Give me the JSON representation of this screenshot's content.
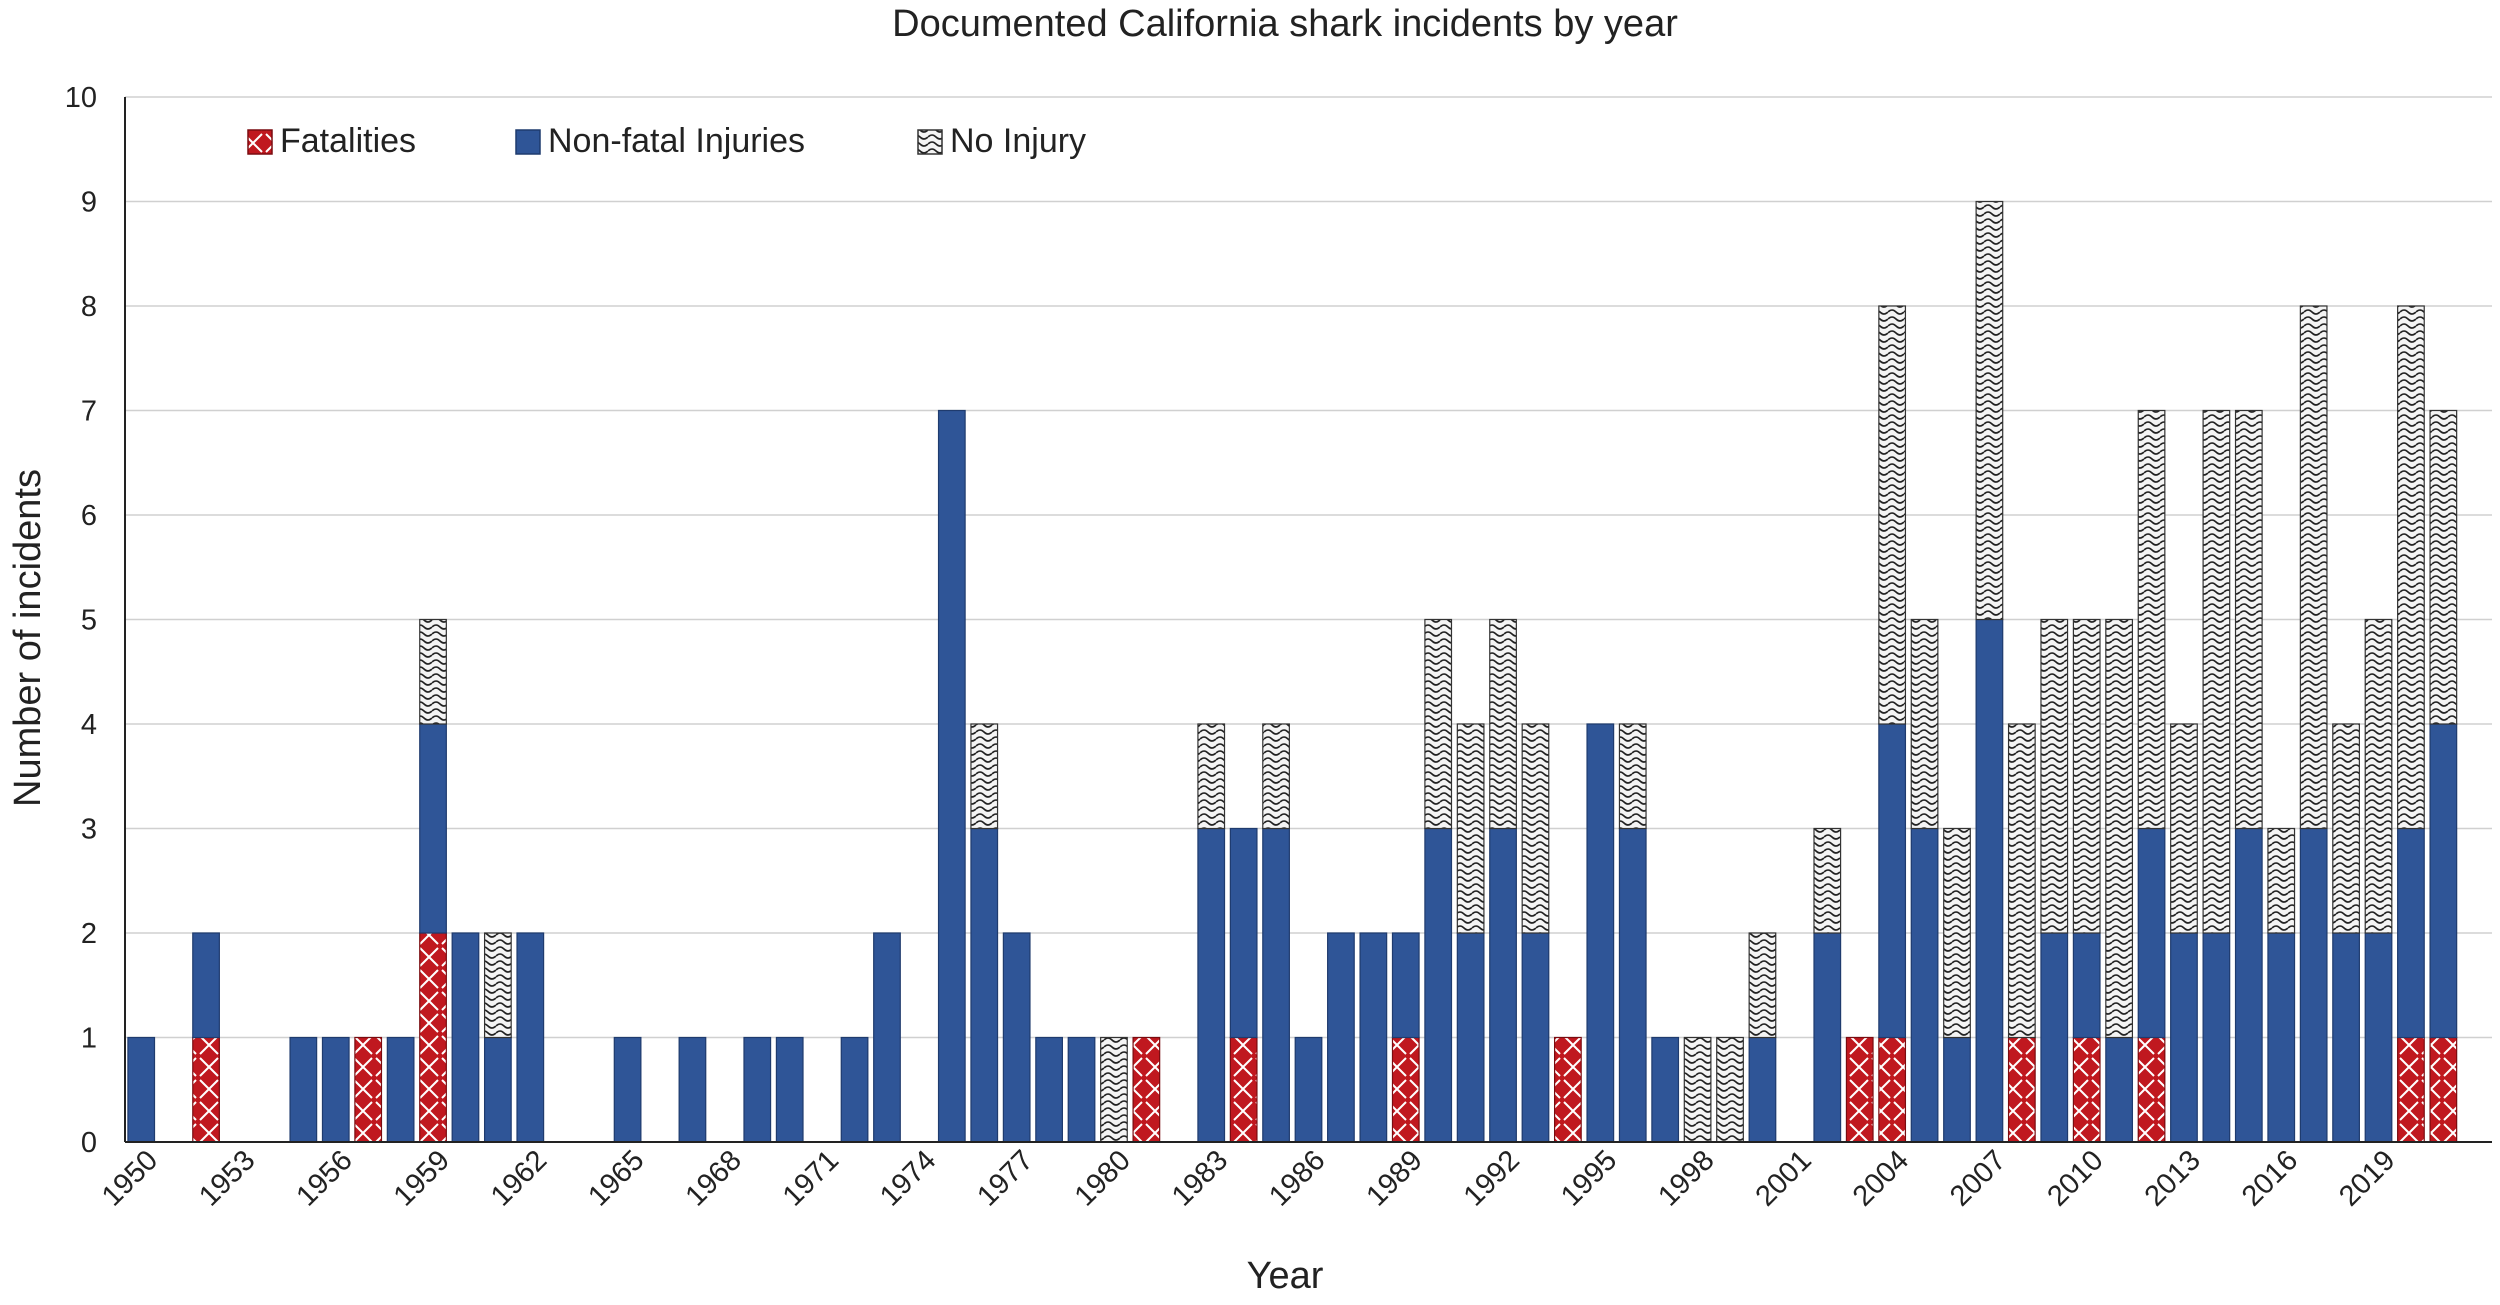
{
  "chart_data": {
    "type": "bar",
    "stacked": true,
    "title": "Documented California shark incidents by year",
    "xlabel": "Year",
    "ylabel": "Number of incidents",
    "ylim": [
      0,
      10
    ],
    "yticks": [
      0,
      1,
      2,
      3,
      4,
      5,
      6,
      7,
      8,
      9,
      10
    ],
    "grid": "horizontal",
    "legend_position": "top-left",
    "categories": [
      1950,
      1951,
      1952,
      1953,
      1954,
      1955,
      1956,
      1957,
      1958,
      1959,
      1960,
      1961,
      1962,
      1963,
      1964,
      1965,
      1966,
      1967,
      1968,
      1969,
      1970,
      1971,
      1972,
      1973,
      1974,
      1975,
      1976,
      1977,
      1978,
      1979,
      1980,
      1981,
      1982,
      1983,
      1984,
      1985,
      1986,
      1987,
      1988,
      1989,
      1990,
      1991,
      1992,
      1993,
      1994,
      1995,
      1996,
      1997,
      1998,
      1999,
      2000,
      2001,
      2002,
      2003,
      2004,
      2005,
      2006,
      2007,
      2008,
      2009,
      2010,
      2011,
      2012,
      2013,
      2014,
      2015,
      2016,
      2017,
      2018,
      2019,
      2020,
      2021,
      2022
    ],
    "x_tick_labels": [
      "1950",
      "1953",
      "1956",
      "1959",
      "1962",
      "1965",
      "1968",
      "1971",
      "1974",
      "1977",
      "1980",
      "1983",
      "1986",
      "1989",
      "1992",
      "1995",
      "1998",
      "2001",
      "2004",
      "2007",
      "2010",
      "2013",
      "2016",
      "2019"
    ],
    "series": [
      {
        "name": "Fatalities",
        "color": "#c0181f",
        "pattern": "crosshatch",
        "values": [
          0,
          0,
          1,
          0,
          0,
          0,
          0,
          1,
          0,
          2,
          0,
          0,
          0,
          0,
          0,
          0,
          0,
          0,
          0,
          0,
          0,
          0,
          0,
          0,
          0,
          0,
          0,
          0,
          0,
          0,
          0,
          1,
          0,
          0,
          1,
          0,
          0,
          0,
          0,
          1,
          0,
          0,
          0,
          0,
          1,
          0,
          0,
          0,
          0,
          0,
          0,
          0,
          0,
          1,
          1,
          0,
          0,
          0,
          1,
          0,
          1,
          0,
          1,
          0,
          0,
          0,
          0,
          0,
          0,
          0,
          1,
          1,
          0
        ]
      },
      {
        "name": "Non-fatal Injuries",
        "color": "#2f5597",
        "pattern": "solid",
        "values": [
          1,
          0,
          1,
          0,
          0,
          1,
          1,
          0,
          1,
          2,
          2,
          1,
          2,
          0,
          0,
          1,
          0,
          1,
          0,
          1,
          1,
          0,
          1,
          2,
          0,
          7,
          3,
          2,
          1,
          1,
          0,
          0,
          0,
          3,
          2,
          3,
          1,
          2,
          2,
          1,
          3,
          2,
          3,
          2,
          0,
          4,
          3,
          1,
          0,
          0,
          1,
          0,
          2,
          0,
          3,
          3,
          1,
          5,
          0,
          2,
          1,
          1,
          2,
          2,
          2,
          3,
          2,
          3,
          2,
          2,
          2,
          3,
          0
        ]
      },
      {
        "name": "No Injury",
        "color": "#f2f2f2",
        "pattern": "wave",
        "values": [
          0,
          0,
          0,
          0,
          0,
          0,
          0,
          0,
          0,
          1,
          0,
          1,
          0,
          0,
          0,
          0,
          0,
          0,
          0,
          0,
          0,
          0,
          0,
          0,
          0,
          0,
          1,
          0,
          0,
          0,
          1,
          0,
          0,
          1,
          0,
          1,
          0,
          0,
          0,
          0,
          2,
          2,
          2,
          2,
          0,
          0,
          1,
          0,
          1,
          1,
          1,
          0,
          1,
          0,
          4,
          2,
          2,
          4,
          3,
          3,
          3,
          4,
          4,
          2,
          5,
          4,
          1,
          5,
          2,
          3,
          5,
          3,
          0
        ]
      }
    ]
  }
}
